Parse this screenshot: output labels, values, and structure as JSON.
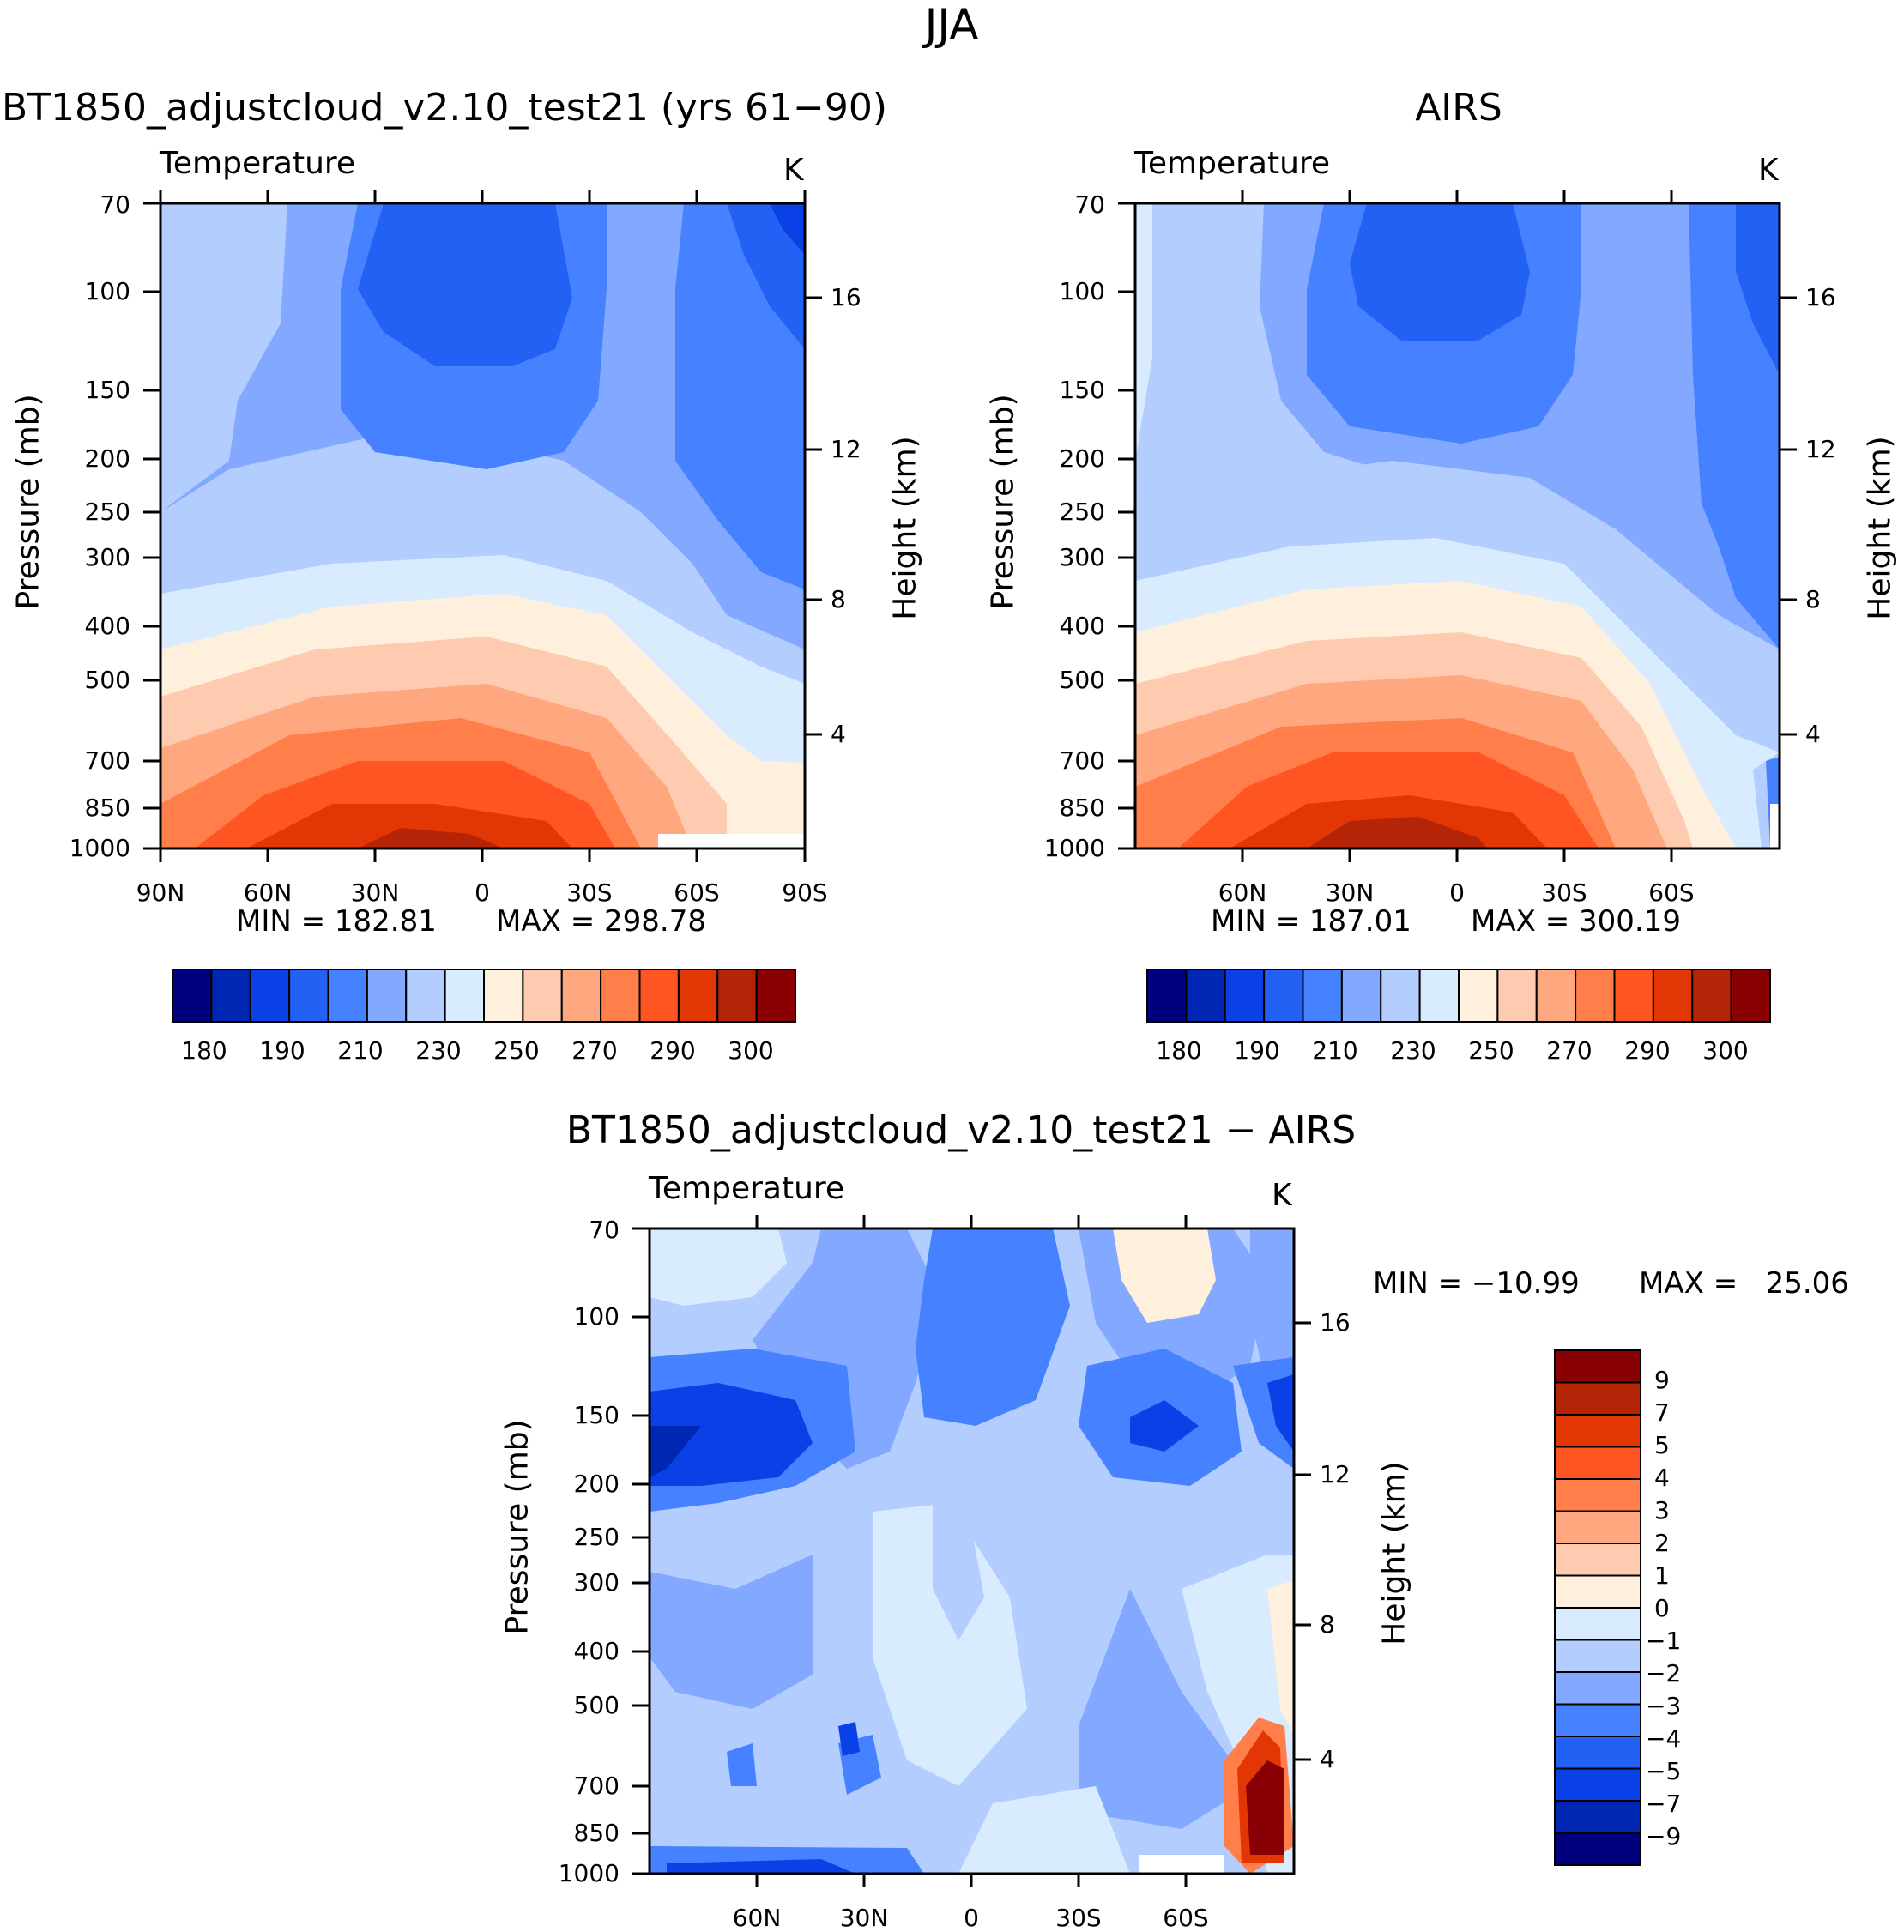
{
  "figure_title": "JJA",
  "panels": {
    "model": {
      "title": "BT1850_adjustcloud_v2.10_test21 (yrs 61−90)",
      "variable": "Temperature",
      "units": "K",
      "min_text": "MIN = 182.81",
      "max_text": "MAX = 298.78"
    },
    "obs": {
      "title": "AIRS",
      "variable": "Temperature",
      "units": "K",
      "min_text": "MIN = 187.01",
      "max_text": "MAX = 300.19"
    },
    "diff": {
      "title": "BT1850_adjustcloud_v2.10_test21 − AIRS",
      "variable": "Temperature",
      "units": "K",
      "min_text": "MIN = −10.99",
      "max_text": "MAX =   25.06"
    }
  },
  "axis_labels": {
    "pressure": "Pressure (mb)",
    "height": "Height (km)"
  },
  "chart_data": [
    {
      "type": "heatmap",
      "name": "model",
      "title": "BT1850_adjustcloud_v2.10_test21 (yrs 61-90)",
      "variable": "Temperature",
      "units": "K",
      "x": [
        "90N",
        "60N",
        "30N",
        "0",
        "30S",
        "60S",
        "90S"
      ],
      "xlabel": "",
      "ylabel": "Pressure (mb)",
      "y2label": "Height (km)",
      "pressure_ticks": [
        "70",
        "100",
        "150",
        "200",
        "250",
        "300",
        "400",
        "500",
        "700",
        "850",
        "1000"
      ],
      "height_ticks": [
        "16",
        "12",
        "8",
        "4"
      ],
      "min": 182.81,
      "max": 298.78
    },
    {
      "type": "heatmap",
      "name": "obs",
      "title": "AIRS",
      "variable": "Temperature",
      "units": "K",
      "x": [
        "60N",
        "30N",
        "0",
        "30S",
        "60S"
      ],
      "xlabel": "",
      "ylabel": "Pressure (mb)",
      "y2label": "Height (km)",
      "pressure_ticks": [
        "70",
        "100",
        "150",
        "200",
        "250",
        "300",
        "400",
        "500",
        "700",
        "850",
        "1000"
      ],
      "height_ticks": [
        "16",
        "12",
        "8",
        "4"
      ],
      "min": 187.01,
      "max": 300.19
    },
    {
      "type": "heatmap",
      "name": "difference",
      "title": "BT1850_adjustcloud_v2.10_test21 - AIRS",
      "variable": "Temperature",
      "units": "K",
      "x": [
        "60N",
        "30N",
        "0",
        "30S",
        "60S"
      ],
      "xlabel": "",
      "ylabel": "Pressure (mb)",
      "y2label": "Height (km)",
      "pressure_ticks": [
        "70",
        "100",
        "150",
        "200",
        "250",
        "300",
        "400",
        "500",
        "700",
        "850",
        "1000"
      ],
      "height_ticks": [
        "16",
        "12",
        "8",
        "4"
      ],
      "min": -10.99,
      "max": 25.06
    }
  ],
  "colorbar_abs": {
    "labels": [
      "180",
      "190",
      "210",
      "230",
      "250",
      "270",
      "290",
      "300"
    ],
    "colors": [
      "#00007f",
      "#0026b4",
      "#0a41e6",
      "#2361f5",
      "#4682ff",
      "#82a8ff",
      "#b4cdff",
      "#d9ebff",
      "#fff0de",
      "#ffcbb0",
      "#ffa880",
      "#ff7e4a",
      "#ff5522",
      "#e23605",
      "#b42406",
      "#880003"
    ]
  },
  "colorbar_diff": {
    "labels": [
      "9",
      "7",
      "5",
      "4",
      "3",
      "2",
      "1",
      "0",
      "−1",
      "−2",
      "−3",
      "−4",
      "−5",
      "−7",
      "−9"
    ],
    "colors": [
      "#880003",
      "#b42406",
      "#e23605",
      "#ff5522",
      "#ff7e4a",
      "#ffa880",
      "#ffcbb0",
      "#fff0de",
      "#d9ebff",
      "#b4cdff",
      "#82a8ff",
      "#4682ff",
      "#2361f5",
      "#0a41e6",
      "#0026b4",
      "#00007f"
    ]
  }
}
